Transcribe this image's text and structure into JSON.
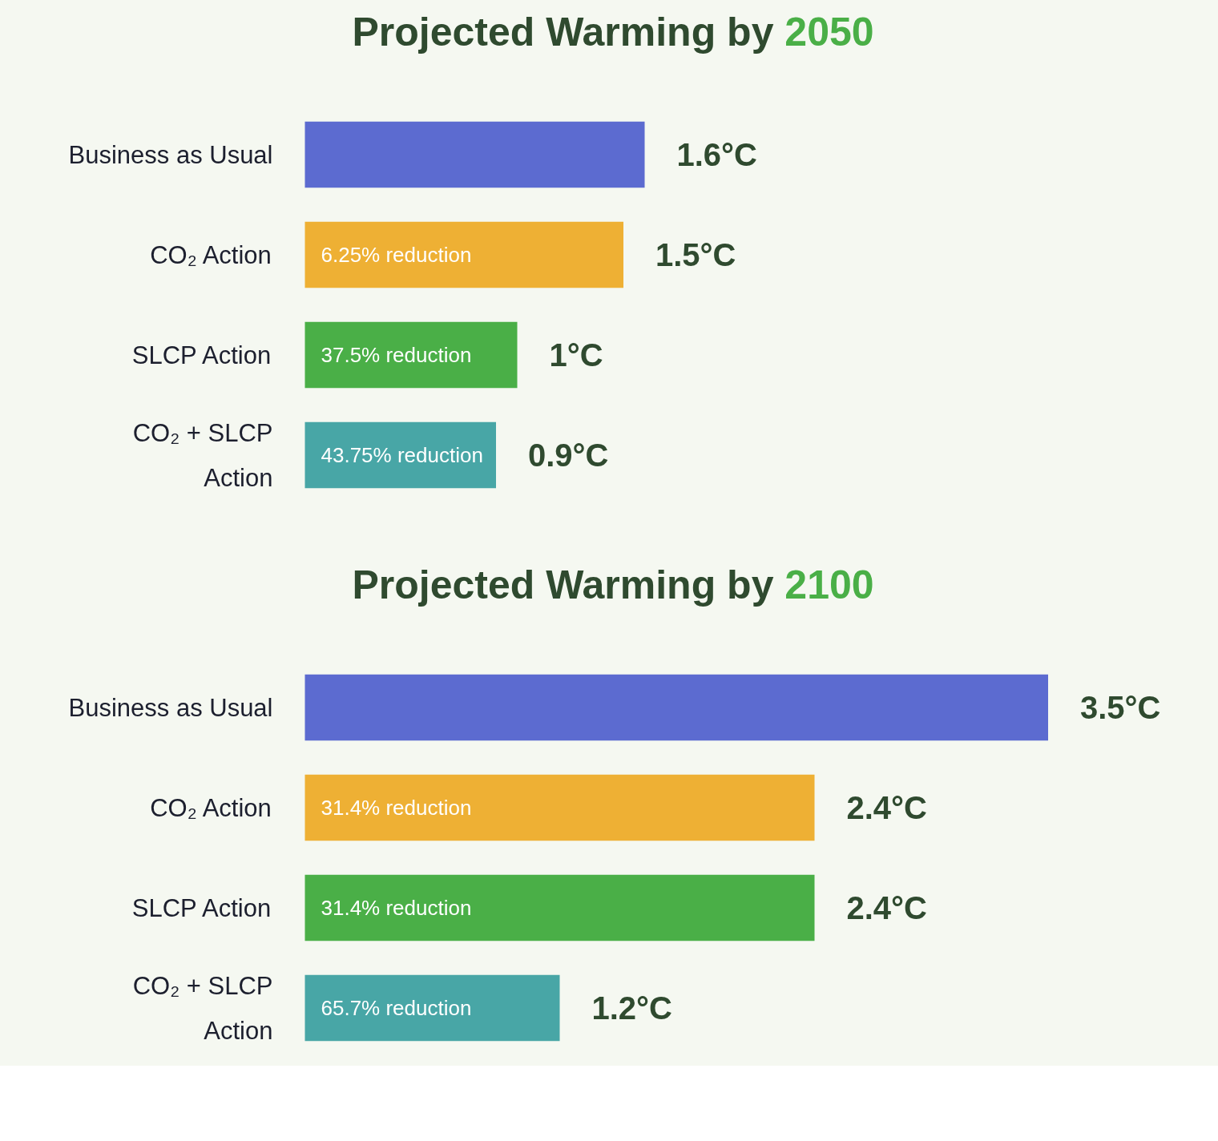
{
  "chart_data": [
    {
      "type": "bar",
      "orientation": "horizontal",
      "title": "Projected Warming by 2050",
      "categories": [
        "Business as Usual",
        "CO₂ Action",
        "SLCP Action",
        "CO₂ + SLCP Action"
      ],
      "values": [
        1.6,
        1.5,
        1,
        0.9
      ],
      "colors": [
        "#5c6bd0",
        "#eeb034",
        "#4aaf47",
        "#48a6a6"
      ],
      "value_labels": [
        "1.6°C",
        "1.5°C",
        "1°C",
        "0.9°C"
      ],
      "annotations": [
        "6.25% reduction",
        "37.5% reduction",
        "43.75% reduction"
      ],
      "grid": false
    },
    {
      "type": "bar",
      "orientation": "horizontal",
      "title": "Projected Warming by 2100",
      "categories": [
        "Business as Usual",
        "CO₂ Action",
        "SLCP Action",
        "CO₂ + SLCP Action"
      ],
      "values": [
        3.5,
        2.4,
        2.4,
        1.2
      ],
      "colors": [
        "#5c6bd0",
        "#eeb034",
        "#4aaf47",
        "#48a6a6"
      ],
      "value_labels": [
        "3.5°C",
        "2.4°C",
        "2.4°C",
        "1.2°C"
      ],
      "annotations": [
        "31.4% reduction",
        "31.4% reduction",
        "65.7% reduction"
      ],
      "grid": false
    }
  ]
}
